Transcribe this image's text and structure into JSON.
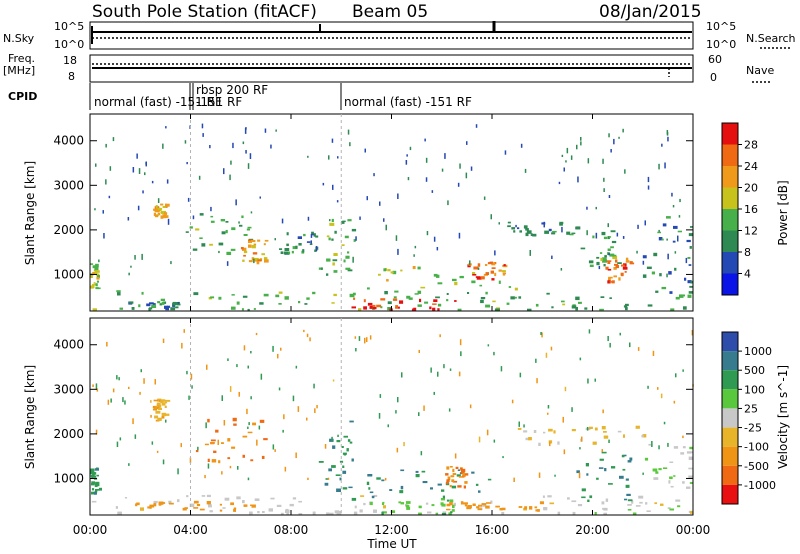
{
  "header": {
    "station": "South Pole Station (fitACF)",
    "beam": "Beam 05",
    "date": "08/Jan/2015"
  },
  "strip_labels": {
    "nsky": "N.Sky",
    "nsearch": "N.Search",
    "freq_line1": "Freq.",
    "freq_line2": "[MHz]",
    "nave": "Nave",
    "cpid": "CPID"
  },
  "x_axis": {
    "label": "Time UT",
    "ticks": [
      "00:00",
      "04:00",
      "08:00",
      "12:00",
      "16:00",
      "20:00",
      "00:00"
    ]
  },
  "panels": {
    "ylabel": "Slant Range [km]",
    "yticks": [
      "1000",
      "2000",
      "3000",
      "4000"
    ]
  },
  "noise_ticks": {
    "left_top": "10^5",
    "left_bottom": "10^0",
    "right_top": "10^5",
    "right_bottom": "10^0"
  },
  "freq_ticks": {
    "left_top": "18",
    "left_bottom": "8",
    "right_top": "60",
    "right_bottom": "0"
  },
  "cpid_modes": [
    {
      "label": "normal (fast) -151 RF",
      "start": 0.0,
      "end": 4.0
    },
    {
      "label": "rbsp 200 RF",
      "start": 4.0,
      "end": 4.1
    },
    {
      "label": "-151 RF",
      "start": 4.1,
      "end": 10.0
    },
    {
      "label": "normal (fast) -151 RF",
      "start": 10.0,
      "end": 24.0
    }
  ],
  "colorbars": {
    "power": {
      "label": "Power [dB]",
      "ticks": [
        "4",
        "8",
        "12",
        "16",
        "20",
        "24",
        "28"
      ],
      "colors": [
        "#0a14e6",
        "#2448b4",
        "#2e8a52",
        "#48b04a",
        "#c8c21c",
        "#ef9a1a",
        "#ef6a12",
        "#e60f0f"
      ]
    },
    "velocity": {
      "label": "Velocity [m s^-1]",
      "ticks": [
        "1000",
        "500",
        "100",
        "25",
        "-25",
        "-100",
        "-500",
        "-1000"
      ],
      "colors": [
        "#2e4caa",
        "#367c8e",
        "#2e9a52",
        "#5ac83c",
        "#c8c8c8",
        "#e8b42a",
        "#ef9414",
        "#ef6a12",
        "#e81010"
      ]
    }
  },
  "chart_data": [
    {
      "type": "heatmap",
      "title": "South Pole Station (fitACF) Beam 05 08/Jan/2015 — Power",
      "xlabel": "Time UT",
      "ylabel": "Slant Range [km]",
      "xlim": [
        0,
        24
      ],
      "ylim": [
        180,
        4600
      ],
      "colorbar_label": "Power [dB]",
      "colorbar_range": [
        0,
        30
      ],
      "features": [
        {
          "t0": 0.0,
          "t1": 24.0,
          "r0": 180,
          "r1": 650,
          "level": 12
        },
        {
          "t0": 10.3,
          "t1": 14.5,
          "r0": 180,
          "r1": 500,
          "level": 28
        },
        {
          "t0": 1.5,
          "t1": 3.5,
          "r0": 250,
          "r1": 400,
          "level": 8
        },
        {
          "t0": 0.0,
          "t1": 0.3,
          "r0": 700,
          "r1": 1300,
          "level": 16
        },
        {
          "t0": 2.5,
          "t1": 3.0,
          "r0": 2300,
          "r1": 2600,
          "level": 20
        },
        {
          "t0": 3.8,
          "t1": 6.5,
          "r0": 1500,
          "r1": 2400,
          "level": 12
        },
        {
          "t0": 6.0,
          "t1": 7.0,
          "r0": 1300,
          "r1": 1800,
          "level": 20
        },
        {
          "t0": 7.5,
          "t1": 9.0,
          "r0": 1500,
          "r1": 2000,
          "level": 8
        },
        {
          "t0": 9.0,
          "t1": 10.5,
          "r0": 1000,
          "r1": 2400,
          "level": 12
        },
        {
          "t0": 11.0,
          "t1": 17.0,
          "r0": 700,
          "r1": 1200,
          "level": 16
        },
        {
          "t0": 15.0,
          "t1": 16.5,
          "r0": 900,
          "r1": 1300,
          "level": 24
        },
        {
          "t0": 16.5,
          "t1": 19.5,
          "r0": 1900,
          "r1": 2200,
          "level": 8
        },
        {
          "t0": 19.5,
          "t1": 21.0,
          "r0": 1200,
          "r1": 2000,
          "level": 12
        },
        {
          "t0": 20.5,
          "t1": 21.5,
          "r0": 800,
          "r1": 1400,
          "level": 24
        },
        {
          "t0": 22.0,
          "t1": 24.0,
          "r0": 600,
          "r1": 2400,
          "level": 8
        }
      ]
    },
    {
      "type": "heatmap",
      "title": "South Pole Station (fitACF) Beam 05 08/Jan/2015 — Velocity",
      "xlabel": "Time UT",
      "ylabel": "Slant Range [km]",
      "xlim": [
        0,
        24
      ],
      "ylim": [
        180,
        4600
      ],
      "colorbar_label": "Velocity [m s^-1]",
      "colorbar_range": [
        -1000,
        1000
      ],
      "features": [
        {
          "t0": 0.0,
          "t1": 24.0,
          "r0": 180,
          "r1": 650,
          "value": 0
        },
        {
          "t0": 1.5,
          "t1": 6.5,
          "r0": 300,
          "r1": 500,
          "value": -300
        },
        {
          "t0": 10.3,
          "t1": 14.5,
          "r0": 200,
          "r1": 600,
          "value": 80
        },
        {
          "t0": 14.0,
          "t1": 18.0,
          "r0": 300,
          "r1": 500,
          "value": -300
        },
        {
          "t0": 0.0,
          "t1": 0.4,
          "r0": 700,
          "r1": 1300,
          "value": 400
        },
        {
          "t0": 2.5,
          "t1": 3.0,
          "r0": 2300,
          "r1": 2800,
          "value": -100
        },
        {
          "t0": 4.0,
          "t1": 7.0,
          "r0": 1400,
          "r1": 2400,
          "value": -500
        },
        {
          "t0": 9.0,
          "t1": 10.5,
          "r0": 700,
          "r1": 2300,
          "value": 500
        },
        {
          "t0": 11.0,
          "t1": 16.0,
          "r0": 600,
          "r1": 1300,
          "value": 500
        },
        {
          "t0": 14.0,
          "t1": 15.0,
          "r0": 800,
          "r1": 1300,
          "value": -500
        },
        {
          "t0": 17.0,
          "t1": 22.0,
          "r0": 1800,
          "r1": 2200,
          "value": -25
        },
        {
          "t0": 19.0,
          "t1": 21.5,
          "r0": 500,
          "r1": 1600,
          "value": 500
        },
        {
          "t0": 22.0,
          "t1": 24.0,
          "r0": 600,
          "r1": 1800,
          "value": 25
        }
      ]
    }
  ]
}
